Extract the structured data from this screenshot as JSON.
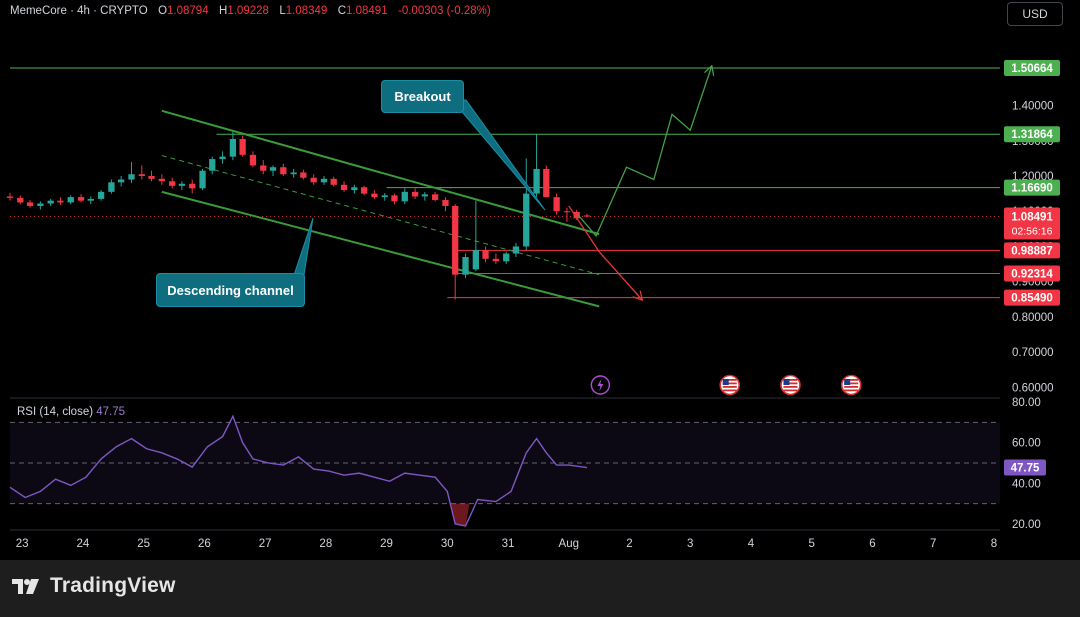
{
  "header": {
    "symbol": "MemeCore",
    "interval": "4h",
    "exchange": "CRYPTO",
    "open_label": "O",
    "open": "1.08794",
    "high_label": "H",
    "high": "1.09228",
    "low_label": "L",
    "low": "1.08349",
    "close_label": "C",
    "close": "1.08491",
    "change": "-0.00303 (-0.28%)",
    "currency_button": "USD"
  },
  "colors": {
    "up": "#26a69a",
    "down": "#f23645",
    "channel": "#3b9b3b",
    "forecast_up": "#43a047",
    "forecast_down": "#e53935",
    "rsi": "#7e57c2",
    "callout": "#0e6e80",
    "support_line": "#f23645",
    "resistance_line": "#4caf50"
  },
  "annotations": {
    "breakout": "Breakout",
    "descending_channel": "Descending channel"
  },
  "footer": {
    "brand": "TradingView"
  },
  "chart_data": [
    {
      "type": "candlestick",
      "title": "MemeCore · 4h · CRYPTO",
      "y_axis": {
        "ticks": [
          "0.60000",
          "0.70000",
          "0.80000",
          "0.90000",
          "1.00000",
          "1.10000",
          "1.20000",
          "1.30000",
          "1.40000",
          "1.50000"
        ],
        "tick_values": [
          0.6,
          0.7,
          0.8,
          0.9,
          1.0,
          1.1,
          1.2,
          1.3,
          1.4,
          1.5
        ],
        "ylim": [
          0.57,
          1.62
        ]
      },
      "x_axis": {
        "ticks": [
          "23",
          "24",
          "25",
          "26",
          "27",
          "28",
          "29",
          "30",
          "31",
          "Aug",
          "2",
          "3",
          "4",
          "5",
          "6",
          "7",
          "8"
        ],
        "tick_values": [
          23,
          24,
          25,
          26,
          27,
          28,
          29,
          30,
          31,
          32,
          33,
          34,
          35,
          36,
          37,
          38,
          39
        ],
        "xlim": [
          22.8,
          39.1
        ]
      },
      "price_labels": [
        {
          "value": 1.50664,
          "text": "1.50664",
          "kind": "resistance"
        },
        {
          "value": 1.31864,
          "text": "1.31864",
          "kind": "resistance"
        },
        {
          "value": 1.1669,
          "text": "1.16690",
          "kind": "resistance"
        },
        {
          "value": 0.98887,
          "text": "0.98887",
          "kind": "support"
        },
        {
          "value": 0.92314,
          "text": "0.92314",
          "kind": "support"
        },
        {
          "value": 0.8549,
          "text": "0.85490",
          "kind": "support"
        }
      ],
      "current_price": {
        "value": 1.08491,
        "text": "1.08491",
        "countdown": "02:56:16"
      },
      "horizontal_levels": [
        {
          "value": 1.50664,
          "from": 22.8,
          "to": 39.1,
          "color": "resistance"
        },
        {
          "value": 1.31864,
          "from": 26.2,
          "to": 39.1,
          "color": "resistance"
        },
        {
          "value": 1.1669,
          "from": 29.0,
          "to": 39.1,
          "color": "resistance"
        },
        {
          "value": 0.98887,
          "from": 30.1,
          "to": 39.1,
          "color": "support"
        },
        {
          "value": 0.92314,
          "from": 30.15,
          "to": 39.1,
          "color": "support"
        },
        {
          "value": 0.8549,
          "from": 30.0,
          "to": 39.1,
          "color": "support"
        }
      ],
      "channel_lines": [
        {
          "from": [
            25.3,
            1.385
          ],
          "to": [
            32.5,
            1.035
          ],
          "style": "solid"
        },
        {
          "from": [
            25.3,
            1.258
          ],
          "to": [
            32.5,
            0.92
          ],
          "style": "dashed"
        },
        {
          "from": [
            25.3,
            1.155
          ],
          "to": [
            32.5,
            0.83
          ],
          "style": "solid"
        }
      ],
      "forecast_bull": [
        [
          32.15,
          1.09
        ],
        [
          32.45,
          1.03
        ],
        [
          32.95,
          1.225
        ],
        [
          33.4,
          1.19
        ],
        [
          33.7,
          1.375
        ],
        [
          34.0,
          1.33
        ],
        [
          34.35,
          1.51
        ]
      ],
      "forecast_bear": [
        [
          32.0,
          1.115
        ],
        [
          32.5,
          0.985
        ],
        [
          33.2,
          0.85
        ]
      ],
      "candles": [
        {
          "t": 22.8,
          "o": 1.142,
          "h": 1.152,
          "l": 1.13,
          "c": 1.138
        },
        {
          "t": 22.97,
          "o": 1.138,
          "h": 1.145,
          "l": 1.12,
          "c": 1.125
        },
        {
          "t": 23.13,
          "o": 1.125,
          "h": 1.132,
          "l": 1.11,
          "c": 1.115
        },
        {
          "t": 23.3,
          "o": 1.115,
          "h": 1.128,
          "l": 1.105,
          "c": 1.122
        },
        {
          "t": 23.47,
          "o": 1.122,
          "h": 1.135,
          "l": 1.115,
          "c": 1.13
        },
        {
          "t": 23.63,
          "o": 1.13,
          "h": 1.14,
          "l": 1.118,
          "c": 1.125
        },
        {
          "t": 23.8,
          "o": 1.125,
          "h": 1.145,
          "l": 1.12,
          "c": 1.14
        },
        {
          "t": 23.97,
          "o": 1.14,
          "h": 1.148,
          "l": 1.125,
          "c": 1.13
        },
        {
          "t": 24.13,
          "o": 1.13,
          "h": 1.142,
          "l": 1.12,
          "c": 1.135
        },
        {
          "t": 24.3,
          "o": 1.135,
          "h": 1.16,
          "l": 1.13,
          "c": 1.155
        },
        {
          "t": 24.47,
          "o": 1.155,
          "h": 1.19,
          "l": 1.15,
          "c": 1.182
        },
        {
          "t": 24.63,
          "o": 1.182,
          "h": 1.2,
          "l": 1.17,
          "c": 1.19
        },
        {
          "t": 24.8,
          "o": 1.19,
          "h": 1.24,
          "l": 1.18,
          "c": 1.205
        },
        {
          "t": 24.97,
          "o": 1.205,
          "h": 1.23,
          "l": 1.19,
          "c": 1.2
        },
        {
          "t": 25.13,
          "o": 1.2,
          "h": 1.215,
          "l": 1.185,
          "c": 1.192
        },
        {
          "t": 25.3,
          "o": 1.192,
          "h": 1.205,
          "l": 1.175,
          "c": 1.185
        },
        {
          "t": 25.47,
          "o": 1.185,
          "h": 1.195,
          "l": 1.165,
          "c": 1.172
        },
        {
          "t": 25.63,
          "o": 1.172,
          "h": 1.185,
          "l": 1.16,
          "c": 1.178
        },
        {
          "t": 25.8,
          "o": 1.178,
          "h": 1.19,
          "l": 1.15,
          "c": 1.165
        },
        {
          "t": 25.97,
          "o": 1.165,
          "h": 1.22,
          "l": 1.16,
          "c": 1.215
        },
        {
          "t": 26.13,
          "o": 1.215,
          "h": 1.255,
          "l": 1.205,
          "c": 1.248
        },
        {
          "t": 26.3,
          "o": 1.248,
          "h": 1.27,
          "l": 1.235,
          "c": 1.255
        },
        {
          "t": 26.47,
          "o": 1.255,
          "h": 1.325,
          "l": 1.245,
          "c": 1.305
        },
        {
          "t": 26.63,
          "o": 1.305,
          "h": 1.315,
          "l": 1.255,
          "c": 1.26
        },
        {
          "t": 26.8,
          "o": 1.26,
          "h": 1.27,
          "l": 1.225,
          "c": 1.23
        },
        {
          "t": 26.97,
          "o": 1.23,
          "h": 1.245,
          "l": 1.205,
          "c": 1.215
        },
        {
          "t": 27.13,
          "o": 1.215,
          "h": 1.23,
          "l": 1.2,
          "c": 1.225
        },
        {
          "t": 27.3,
          "o": 1.225,
          "h": 1.235,
          "l": 1.2,
          "c": 1.205
        },
        {
          "t": 27.47,
          "o": 1.205,
          "h": 1.22,
          "l": 1.195,
          "c": 1.21
        },
        {
          "t": 27.63,
          "o": 1.21,
          "h": 1.218,
          "l": 1.19,
          "c": 1.195
        },
        {
          "t": 27.8,
          "o": 1.195,
          "h": 1.205,
          "l": 1.175,
          "c": 1.182
        },
        {
          "t": 27.97,
          "o": 1.182,
          "h": 1.2,
          "l": 1.175,
          "c": 1.192
        },
        {
          "t": 28.13,
          "o": 1.192,
          "h": 1.198,
          "l": 1.17,
          "c": 1.175
        },
        {
          "t": 28.3,
          "o": 1.175,
          "h": 1.185,
          "l": 1.155,
          "c": 1.16
        },
        {
          "t": 28.47,
          "o": 1.16,
          "h": 1.175,
          "l": 1.15,
          "c": 1.168
        },
        {
          "t": 28.63,
          "o": 1.168,
          "h": 1.172,
          "l": 1.145,
          "c": 1.15
        },
        {
          "t": 28.8,
          "o": 1.15,
          "h": 1.16,
          "l": 1.135,
          "c": 1.14
        },
        {
          "t": 28.97,
          "o": 1.14,
          "h": 1.152,
          "l": 1.13,
          "c": 1.145
        },
        {
          "t": 29.13,
          "o": 1.145,
          "h": 1.15,
          "l": 1.12,
          "c": 1.128
        },
        {
          "t": 29.3,
          "o": 1.128,
          "h": 1.165,
          "l": 1.12,
          "c": 1.155
        },
        {
          "t": 29.47,
          "o": 1.155,
          "h": 1.165,
          "l": 1.135,
          "c": 1.142
        },
        {
          "t": 29.63,
          "o": 1.142,
          "h": 1.155,
          "l": 1.13,
          "c": 1.148
        },
        {
          "t": 29.8,
          "o": 1.148,
          "h": 1.155,
          "l": 1.128,
          "c": 1.132
        },
        {
          "t": 29.97,
          "o": 1.132,
          "h": 1.14,
          "l": 1.1,
          "c": 1.115
        },
        {
          "t": 30.13,
          "o": 1.115,
          "h": 1.12,
          "l": 0.85,
          "c": 0.92
        },
        {
          "t": 30.3,
          "o": 0.92,
          "h": 0.98,
          "l": 0.91,
          "c": 0.97
        },
        {
          "t": 30.47,
          "o": 0.935,
          "h": 1.13,
          "l": 0.93,
          "c": 0.99
        },
        {
          "t": 30.63,
          "o": 0.99,
          "h": 1.0,
          "l": 0.955,
          "c": 0.965
        },
        {
          "t": 30.8,
          "o": 0.965,
          "h": 0.98,
          "l": 0.95,
          "c": 0.958
        },
        {
          "t": 30.97,
          "o": 0.958,
          "h": 0.985,
          "l": 0.95,
          "c": 0.98
        },
        {
          "t": 31.13,
          "o": 0.98,
          "h": 1.01,
          "l": 0.97,
          "c": 1.0
        },
        {
          "t": 31.3,
          "o": 1.0,
          "h": 1.25,
          "l": 0.99,
          "c": 1.15
        },
        {
          "t": 31.47,
          "o": 1.15,
          "h": 1.32,
          "l": 1.14,
          "c": 1.22
        },
        {
          "t": 31.63,
          "o": 1.22,
          "h": 1.23,
          "l": 1.14,
          "c": 1.14
        },
        {
          "t": 31.8,
          "o": 1.14,
          "h": 1.15,
          "l": 1.09,
          "c": 1.1
        },
        {
          "t": 31.97,
          "o": 1.1,
          "h": 1.11,
          "l": 1.07,
          "c": 1.098
        },
        {
          "t": 32.13,
          "o": 1.098,
          "h": 1.104,
          "l": 1.075,
          "c": 1.08
        },
        {
          "t": 32.3,
          "o": 1.088,
          "h": 1.092,
          "l": 1.083,
          "c": 1.085
        }
      ],
      "events": [
        {
          "t": 32.52,
          "kind": "lightning"
        },
        {
          "t": 34.65,
          "kind": "us-flag"
        },
        {
          "t": 35.65,
          "kind": "us-flag"
        },
        {
          "t": 36.65,
          "kind": "us-flag"
        }
      ]
    },
    {
      "type": "line",
      "title": "RSI (14, close)",
      "name": "RSI",
      "current_value": "47.75",
      "y_axis": {
        "ticks": [
          "20.00",
          "40.00",
          "60.00",
          "80.00"
        ],
        "tick_values": [
          20,
          40,
          60,
          80
        ],
        "ylim": [
          17,
          82
        ]
      },
      "band": [
        30,
        70
      ],
      "midline": 50,
      "x": [
        22.8,
        23.05,
        23.3,
        23.55,
        23.8,
        24.05,
        24.3,
        24.55,
        24.8,
        25.05,
        25.3,
        25.55,
        25.8,
        26.05,
        26.3,
        26.47,
        26.63,
        26.8,
        27.05,
        27.3,
        27.55,
        27.8,
        28.05,
        28.3,
        28.55,
        28.8,
        29.05,
        29.3,
        29.55,
        29.8,
        30.0,
        30.13,
        30.3,
        30.5,
        30.8,
        31.05,
        31.3,
        31.47,
        31.63,
        31.8,
        32.0,
        32.3
      ],
      "values": [
        38,
        33,
        36,
        42,
        39,
        43,
        52,
        58,
        62,
        57,
        55,
        52,
        48,
        58,
        63,
        73,
        60,
        52,
        50,
        49,
        53,
        47,
        46,
        44,
        45,
        43,
        41,
        45,
        44,
        43,
        36,
        20,
        19,
        32,
        31,
        36,
        55,
        62,
        55,
        49,
        49,
        47.75
      ]
    }
  ]
}
